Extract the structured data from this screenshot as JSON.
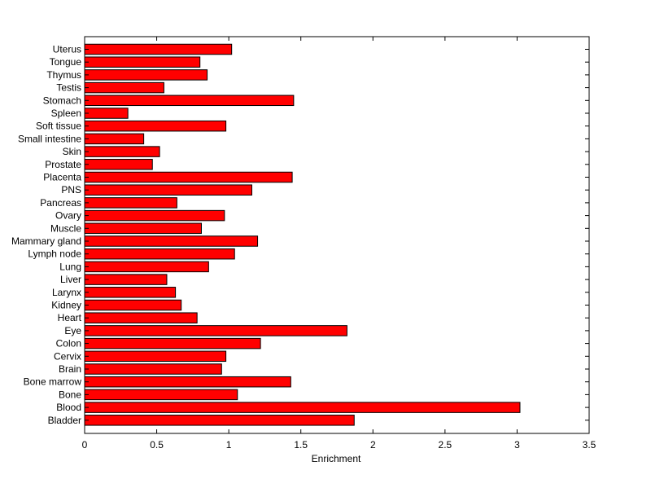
{
  "chart_data": {
    "type": "bar",
    "orientation": "horizontal",
    "categories": [
      "Uterus",
      "Tongue",
      "Thymus",
      "Testis",
      "Stomach",
      "Spleen",
      "Soft tissue",
      "Small intestine",
      "Skin",
      "Prostate",
      "Placenta",
      "PNS",
      "Pancreas",
      "Ovary",
      "Muscle",
      "Mammary gland",
      "Lymph node",
      "Lung",
      "Liver",
      "Larynx",
      "Kidney",
      "Heart",
      "Eye",
      "Colon",
      "Cervix",
      "Brain",
      "Bone marrow",
      "Bone",
      "Blood",
      "Bladder"
    ],
    "values": [
      1.02,
      0.8,
      0.85,
      0.55,
      1.45,
      0.3,
      0.98,
      0.41,
      0.52,
      0.47,
      1.44,
      1.16,
      0.64,
      0.97,
      0.81,
      1.2,
      1.04,
      0.86,
      0.57,
      0.63,
      0.67,
      0.78,
      1.82,
      1.22,
      0.98,
      0.95,
      1.43,
      1.06,
      3.02,
      1.87
    ],
    "title": "",
    "xlabel": "Enrichment",
    "ylabel": "",
    "xlim": [
      0,
      3.5
    ],
    "xticks": [
      "0",
      "0.5",
      "1",
      "1.5",
      "2",
      "2.5",
      "3",
      "3.5"
    ],
    "grid": false,
    "bar_color": "#ff0000",
    "edge_color": "#000000"
  }
}
